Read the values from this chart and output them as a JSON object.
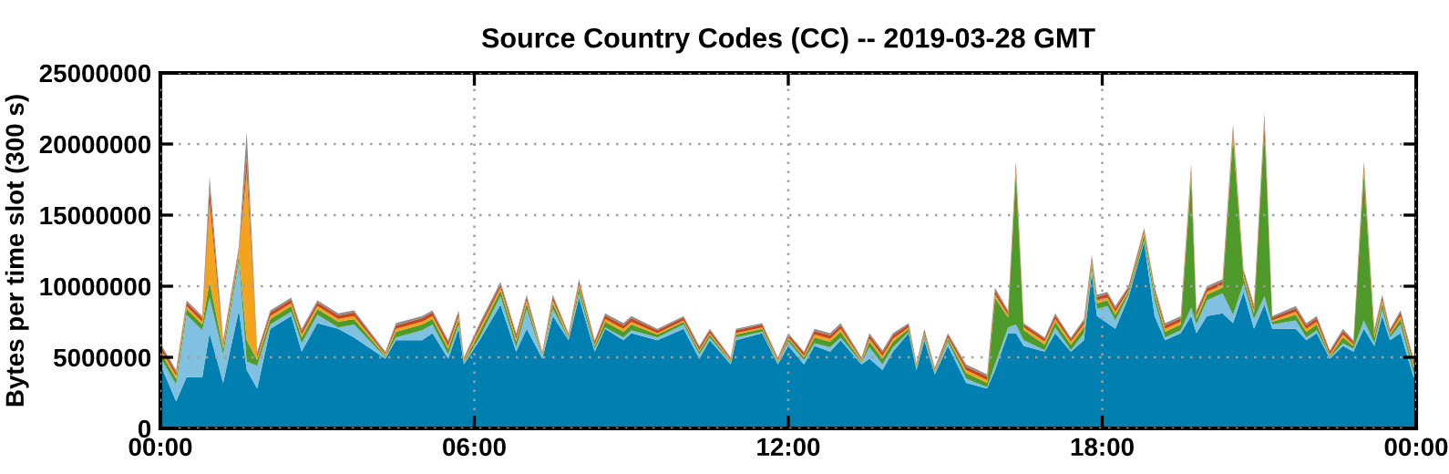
{
  "chart_data": {
    "type": "area",
    "stacked": true,
    "title": "Source Country Codes (CC) -- 2019-03-28 GMT",
    "ylabel": "Bytes per time slot (300 s)",
    "x": [
      0,
      0.3,
      0.5,
      0.8,
      0.94,
      1.2,
      1.5,
      1.65,
      1.85,
      2.1,
      2.5,
      2.7,
      3.0,
      3.4,
      3.7,
      4.3,
      4.5,
      5.0,
      5.2,
      5.5,
      5.7,
      5.8,
      6.1,
      6.5,
      6.8,
      7.0,
      7.3,
      7.5,
      7.8,
      8.0,
      8.3,
      8.5,
      8.85,
      9.0,
      9.5,
      10.0,
      10.3,
      10.5,
      10.9,
      11.0,
      11.5,
      11.8,
      12.0,
      12.3,
      12.5,
      12.8,
      13.0,
      13.4,
      13.55,
      13.8,
      14.0,
      14.3,
      14.45,
      14.6,
      14.8,
      15.05,
      15.4,
      15.8,
      15.95,
      16.2,
      16.35,
      16.5,
      16.9,
      17.1,
      17.4,
      17.65,
      17.8,
      17.9,
      18.1,
      18.25,
      18.5,
      18.8,
      19.0,
      19.2,
      19.5,
      19.7,
      19.8,
      20.0,
      20.3,
      20.5,
      20.7,
      20.9,
      21.1,
      21.25,
      21.7,
      21.9,
      22.1,
      22.35,
      22.6,
      22.8,
      23.0,
      23.2,
      23.35,
      23.5,
      23.7,
      23.95,
      24.0
    ],
    "series": [
      {
        "color": "#0080b0",
        "values": [
          4500000.0,
          1900000.0,
          3600000.0,
          3600000.0,
          6700000.0,
          3200000.0,
          8300000.0,
          4100000.0,
          2800000.0,
          7000000.0,
          7900000.0,
          5400000.0,
          7400000.0,
          7000000.0,
          6400000.0,
          4900000.0,
          6200000.0,
          6200000.0,
          6700000.0,
          4900000.0,
          7000000.0,
          4500000.0,
          6200000.0,
          8700000.0,
          5400000.0,
          7000000.0,
          4900000.0,
          7900000.0,
          6200000.0,
          9200000.0,
          5400000.0,
          7000000.0,
          6200000.0,
          6700000.0,
          6200000.0,
          7000000.0,
          4900000.0,
          6200000.0,
          4500000.0,
          6200000.0,
          6700000.0,
          4500000.0,
          5800000.0,
          4500000.0,
          5800000.0,
          5400000.0,
          6200000.0,
          4500000.0,
          4900000.0,
          4100000.0,
          5400000.0,
          6700000.0,
          4100000.0,
          6200000.0,
          3800000.0,
          5800000.0,
          3200000.0,
          2800000.0,
          4100000.0,
          6700000.0,
          6700000.0,
          5800000.0,
          5400000.0,
          6700000.0,
          5400000.0,
          6200000.0,
          10900000.0,
          7900000.0,
          7400000.0,
          7000000.0,
          9200000.0,
          13100000.0,
          7900000.0,
          6200000.0,
          6700000.0,
          7900000.0,
          6700000.0,
          7900000.0,
          8100000.0,
          7400000.0,
          9600000.0,
          7000000.0,
          8700000.0,
          7000000.0,
          7000000.0,
          6200000.0,
          6700000.0,
          4900000.0,
          5800000.0,
          5400000.0,
          7000000.0,
          5800000.0,
          7900000.0,
          6200000.0,
          6700000.0,
          3600000.0,
          3600000.0
        ]
      },
      {
        "color": "#80c0e0",
        "values": [
          500000.0,
          1200000.0,
          4400000.0,
          3300000.0,
          2500000.0,
          2000000.0,
          3500000.0,
          600000.0,
          1600000.0,
          300000.0,
          300000.0,
          600000.0,
          600000.0,
          100000.0,
          900000.0,
          100000.0,
          200000.0,
          700000.0,
          600000.0,
          300000.0,
          300000.0,
          100000.0,
          200000.0,
          600000.0,
          300000.0,
          1400000.0,
          100000.0,
          500000.0,
          100000.0,
          300000.0,
          200000.0,
          100000.0,
          200000.0,
          200000.0,
          200000.0,
          300000.0,
          300000.0,
          200000.0,
          100000.0,
          200000.0,
          100000.0,
          100000.0,
          300000.0,
          300000.0,
          200000.0,
          300000.0,
          200000.0,
          100000.0,
          800000.0,
          400000.0,
          300000.0,
          100000.0,
          100000.0,
          200000.0,
          100000.0,
          300000.0,
          300000.0,
          100000.0,
          400000.0,
          400000.0,
          600000.0,
          400000.0,
          100000.0,
          400000.0,
          100000.0,
          500000.0,
          300000.0,
          500000.0,
          1200000.0,
          600000.0,
          200000.0,
          100000.0,
          1100000.0,
          200000.0,
          200000.0,
          600000.0,
          600000.0,
          1100000.0,
          1400000.0,
          600000.0,
          600000.0,
          700000.0,
          600000.0,
          300000.0,
          600000.0,
          200000.0,
          200000.0,
          100000.0,
          200000.0,
          200000.0,
          600000.0,
          200000.0,
          500000.0,
          200000.0,
          600000.0,
          300000.0,
          300000.0
        ]
      },
      {
        "color": "#4e9a2a",
        "values": [
          400000.0,
          400000.0,
          400000.0,
          400000.0,
          1100000.0,
          400000.0,
          400000.0,
          1500000.0,
          400000.0,
          400000.0,
          400000.0,
          400000.0,
          400000.0,
          400000.0,
          400000.0,
          100000.0,
          400000.0,
          400000.0,
          400000.0,
          400000.0,
          400000.0,
          100000.0,
          400000.0,
          400000.0,
          400000.0,
          400000.0,
          100000.0,
          400000.0,
          100000.0,
          400000.0,
          200000.0,
          400000.0,
          400000.0,
          400000.0,
          200000.0,
          200000.0,
          200000.0,
          200000.0,
          100000.0,
          200000.0,
          200000.0,
          100000.0,
          200000.0,
          200000.0,
          400000.0,
          400000.0,
          400000.0,
          100000.0,
          400000.0,
          400000.0,
          400000.0,
          200000.0,
          100000.0,
          200000.0,
          100000.0,
          200000.0,
          400000.0,
          300000.0,
          4700000.0,
          700000.0,
          10600000.0,
          700000.0,
          400000.0,
          400000.0,
          400000.0,
          400000.0,
          400000.0,
          400000.0,
          400000.0,
          400000.0,
          200000.0,
          400000.0,
          400000.0,
          400000.0,
          400000.0,
          9200000.0,
          400000.0,
          400000.0,
          400000.0,
          12500000.0,
          400000.0,
          400000.0,
          12000000.0,
          200000.0,
          400000.0,
          400000.0,
          400000.0,
          100000.0,
          400000.0,
          200000.0,
          10300000.0,
          400000.0,
          400000.0,
          200000.0,
          400000.0,
          400000.0,
          400000.0
        ]
      },
      {
        "color": "#f4a41c",
        "values": [
          200000.0,
          200000.0,
          200000.0,
          200000.0,
          5600000.0,
          200000.0,
          200000.0,
          11800000.0,
          200000.0,
          200000.0,
          200000.0,
          200000.0,
          200000.0,
          200000.0,
          200000.0,
          100000.0,
          200000.0,
          200000.0,
          200000.0,
          200000.0,
          200000.0,
          100000.0,
          200000.0,
          200000.0,
          200000.0,
          200000.0,
          100000.0,
          200000.0,
          100000.0,
          200000.0,
          100000.0,
          200000.0,
          200000.0,
          200000.0,
          100000.0,
          100000.0,
          100000.0,
          100000.0,
          100000.0,
          100000.0,
          100000.0,
          100000.0,
          100000.0,
          100000.0,
          200000.0,
          200000.0,
          200000.0,
          100000.0,
          200000.0,
          200000.0,
          200000.0,
          100000.0,
          100000.0,
          100000.0,
          100000.0,
          100000.0,
          200000.0,
          200000.0,
          200000.0,
          200000.0,
          300000.0,
          200000.0,
          200000.0,
          200000.0,
          200000.0,
          200000.0,
          200000.0,
          200000.0,
          200000.0,
          200000.0,
          100000.0,
          200000.0,
          200000.0,
          200000.0,
          200000.0,
          300000.0,
          200000.0,
          200000.0,
          200000.0,
          300000.0,
          200000.0,
          200000.0,
          300000.0,
          100000.0,
          200000.0,
          200000.0,
          200000.0,
          100000.0,
          200000.0,
          100000.0,
          300000.0,
          200000.0,
          200000.0,
          100000.0,
          200000.0,
          200000.0,
          200000.0
        ]
      },
      {
        "color": "#c8461e",
        "values": [
          250000.0,
          250000.0,
          250000.0,
          250000.0,
          1000000.0,
          250000.0,
          250000.0,
          1000000.0,
          250000.0,
          250000.0,
          250000.0,
          250000.0,
          250000.0,
          250000.0,
          250000.0,
          100000.0,
          250000.0,
          250000.0,
          250000.0,
          250000.0,
          250000.0,
          100000.0,
          250000.0,
          250000.0,
          250000.0,
          250000.0,
          100000.0,
          250000.0,
          100000.0,
          250000.0,
          200000.0,
          250000.0,
          250000.0,
          250000.0,
          200000.0,
          200000.0,
          200000.0,
          200000.0,
          100000.0,
          200000.0,
          200000.0,
          100000.0,
          200000.0,
          200000.0,
          250000.0,
          250000.0,
          250000.0,
          100000.0,
          250000.0,
          250000.0,
          250000.0,
          200000.0,
          100000.0,
          200000.0,
          100000.0,
          200000.0,
          250000.0,
          250000.0,
          300000.0,
          200000.0,
          400000.0,
          200000.0,
          200000.0,
          250000.0,
          200000.0,
          250000.0,
          250000.0,
          250000.0,
          250000.0,
          250000.0,
          200000.0,
          200000.0,
          250000.0,
          250000.0,
          250000.0,
          400000.0,
          250000.0,
          250000.0,
          250000.0,
          400000.0,
          250000.0,
          250000.0,
          400000.0,
          200000.0,
          250000.0,
          250000.0,
          250000.0,
          200000.0,
          250000.0,
          200000.0,
          400000.0,
          250000.0,
          250000.0,
          200000.0,
          250000.0,
          250000.0,
          250000.0
        ]
      },
      {
        "color": "#8c8c8c",
        "values": [
          150000.0,
          150000.0,
          150000.0,
          150000.0,
          800000.0,
          150000.0,
          150000.0,
          1900000.0,
          150000.0,
          150000.0,
          150000.0,
          150000.0,
          150000.0,
          150000.0,
          150000.0,
          100000.0,
          150000.0,
          150000.0,
          150000.0,
          150000.0,
          150000.0,
          100000.0,
          150000.0,
          150000.0,
          150000.0,
          150000.0,
          100000.0,
          150000.0,
          100000.0,
          150000.0,
          100000.0,
          150000.0,
          150000.0,
          150000.0,
          100000.0,
          100000.0,
          100000.0,
          100000.0,
          100000.0,
          100000.0,
          100000.0,
          100000.0,
          100000.0,
          100000.0,
          150000.0,
          150000.0,
          150000.0,
          100000.0,
          150000.0,
          150000.0,
          150000.0,
          100000.0,
          100000.0,
          100000.0,
          100000.0,
          100000.0,
          150000.0,
          150000.0,
          200000.0,
          100000.0,
          200000.0,
          100000.0,
          100000.0,
          150000.0,
          100000.0,
          150000.0,
          150000.0,
          150000.0,
          150000.0,
          150000.0,
          100000.0,
          100000.0,
          150000.0,
          150000.0,
          150000.0,
          200000.0,
          150000.0,
          150000.0,
          150000.0,
          200000.0,
          150000.0,
          150000.0,
          200000.0,
          100000.0,
          150000.0,
          150000.0,
          150000.0,
          100000.0,
          150000.0,
          100000.0,
          200000.0,
          150000.0,
          150000.0,
          100000.0,
          150000.0,
          150000.0,
          150000.0
        ]
      }
    ],
    "xlim": [
      0,
      24
    ],
    "xticks": [
      {
        "value": 0,
        "label": "00:00"
      },
      {
        "value": 6,
        "label": "06:00"
      },
      {
        "value": 12,
        "label": "12:00"
      },
      {
        "value": 18,
        "label": "18:00"
      },
      {
        "value": 24,
        "label": "00:00"
      }
    ],
    "ylim": [
      0,
      25000000
    ],
    "yticks": [
      0,
      5000000,
      10000000,
      15000000,
      20000000,
      25000000
    ],
    "grid": true
  }
}
